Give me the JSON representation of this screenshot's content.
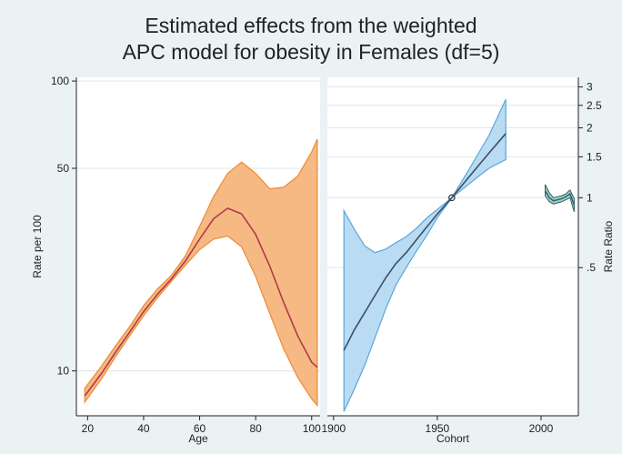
{
  "chart_data": {
    "title": "Estimated effects from the weighted",
    "subtitle": "APC model for obesity in Females (df=5)",
    "colors": {
      "age_band": "#f6b983",
      "age_band_edge": "#ee8a33",
      "age_line": "#b03a4a",
      "cohort_band": "#b9dcf2",
      "cohort_band_edge": "#5aa6df",
      "cohort_line": "#3a4f66",
      "period_band": "#9ccfc8",
      "period_line": "#2f5f62",
      "grid": "#e0e6ea",
      "panel": "#ffffff"
    },
    "age_panel": {
      "type": "area",
      "xlabel": "Age",
      "ylabel": "Rate per 100",
      "xlim": [
        16,
        103
      ],
      "ylim": [
        7,
        103
      ],
      "log_scale": true,
      "xticks": [
        20,
        40,
        60,
        80,
        100
      ],
      "yticks": [
        10,
        50,
        100
      ],
      "x": [
        19,
        25,
        30,
        35,
        40,
        45,
        50,
        55,
        60,
        65,
        70,
        75,
        80,
        85,
        90,
        95,
        100,
        102
      ],
      "fit": [
        8.2,
        9.8,
        11.6,
        13.6,
        16.0,
        18.4,
        20.8,
        24.0,
        28.5,
        33.5,
        36.4,
        34.8,
        29.6,
        23.0,
        17.2,
        13.2,
        10.7,
        10.3
      ],
      "lower": [
        7.8,
        9.4,
        11.2,
        13.2,
        15.5,
        17.9,
        20.4,
        23.2,
        26.2,
        28.5,
        29.2,
        26.8,
        21.2,
        15.8,
        11.9,
        9.5,
        8.0,
        7.6
      ],
      "upper": [
        8.7,
        10.4,
        12.2,
        14.2,
        16.8,
        19.2,
        21.4,
        25.0,
        31.5,
        40.0,
        48.0,
        52.5,
        48.0,
        42.5,
        43.0,
        47.0,
        57.0,
        63.0
      ]
    },
    "cohort_panel": {
      "type": "area",
      "xlabel": "Cohort",
      "ylabel": "Rate Ratio",
      "xlim": [
        1897,
        2018
      ],
      "ylim": [
        0.115,
        3.3
      ],
      "log_scale": true,
      "xticks": [
        1900,
        1950,
        2000
      ],
      "yticks": [
        0.5,
        1,
        1.5,
        2,
        2.5,
        3
      ],
      "yticklabels": [
        ".5",
        "1",
        "1.5",
        "2",
        "2.5",
        "3"
      ],
      "cohort": {
        "x": [
          1905,
          1910,
          1915,
          1920,
          1925,
          1930,
          1935,
          1940,
          1945,
          1950,
          1957,
          1965,
          1970,
          1975,
          1983
        ],
        "fit": [
          0.22,
          0.27,
          0.32,
          0.38,
          0.45,
          0.52,
          0.58,
          0.66,
          0.75,
          0.85,
          1.0,
          1.22,
          1.38,
          1.56,
          1.89
        ],
        "lower": [
          0.12,
          0.15,
          0.19,
          0.25,
          0.33,
          0.42,
          0.5,
          0.59,
          0.69,
          0.82,
          1.0,
          1.14,
          1.24,
          1.34,
          1.46
        ],
        "upper": [
          0.88,
          0.73,
          0.62,
          0.58,
          0.6,
          0.64,
          0.68,
          0.74,
          0.82,
          0.89,
          1.0,
          1.31,
          1.56,
          1.86,
          2.65
        ]
      },
      "period": {
        "x": [
          2002,
          2004,
          2006,
          2008,
          2010,
          2012,
          2014,
          2016
        ],
        "fit": [
          1.07,
          1.0,
          0.97,
          0.98,
          0.99,
          1.01,
          1.04,
          0.93
        ],
        "lower": [
          1.02,
          0.96,
          0.94,
          0.95,
          0.96,
          0.98,
          1.0,
          0.87
        ],
        "upper": [
          1.14,
          1.05,
          1.0,
          1.01,
          1.02,
          1.04,
          1.08,
          0.99
        ]
      },
      "reference_point": {
        "x": 1957,
        "y": 1
      }
    }
  }
}
